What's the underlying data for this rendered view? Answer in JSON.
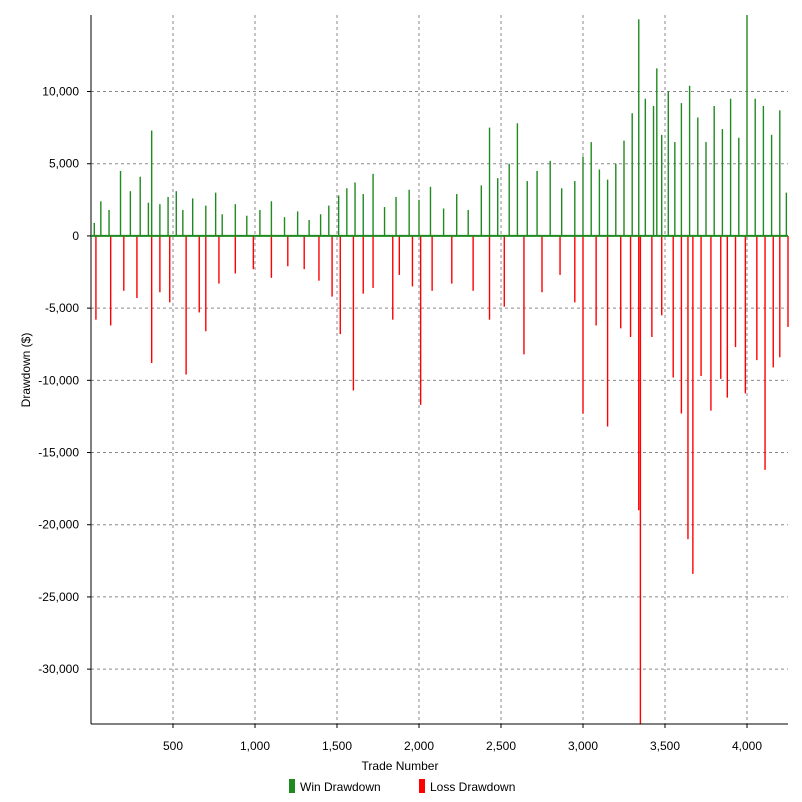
{
  "chart_data": {
    "type": "bar",
    "xlabel": "Trade Number",
    "ylabel": "Drawdown ($)",
    "xlim": [
      0,
      4250
    ],
    "ylim": [
      -33800,
      15300
    ],
    "x_ticks": [
      500,
      1000,
      1500,
      2000,
      2500,
      3000,
      3500,
      4000
    ],
    "x_tick_labels": [
      "500",
      "1,000",
      "1,500",
      "2,000",
      "2,500",
      "3,000",
      "3,500",
      "4,000"
    ],
    "y_ticks": [
      10000,
      5000,
      0,
      -5000,
      -10000,
      -15000,
      -20000,
      -25000,
      -30000
    ],
    "y_tick_labels": [
      "10,000",
      "5,000",
      "0",
      "-5,000",
      "-10,000",
      "-15,000",
      "-20,000",
      "-25,000",
      "-30,000"
    ],
    "grid": true,
    "legend": "bottom",
    "series": [
      {
        "name": "Win Drawdown",
        "color": "#1f8a1f",
        "points": [
          [
            20,
            900
          ],
          [
            60,
            2400
          ],
          [
            110,
            1800
          ],
          [
            180,
            4500
          ],
          [
            240,
            3100
          ],
          [
            300,
            4100
          ],
          [
            350,
            2300
          ],
          [
            370,
            7300
          ],
          [
            420,
            2200
          ],
          [
            470,
            2700
          ],
          [
            520,
            3100
          ],
          [
            560,
            1800
          ],
          [
            620,
            2600
          ],
          [
            700,
            2100
          ],
          [
            760,
            3000
          ],
          [
            800,
            1500
          ],
          [
            880,
            2200
          ],
          [
            950,
            1400
          ],
          [
            1030,
            1800
          ],
          [
            1100,
            2400
          ],
          [
            1180,
            1300
          ],
          [
            1260,
            1700
          ],
          [
            1330,
            1100
          ],
          [
            1400,
            1500
          ],
          [
            1450,
            2100
          ],
          [
            1510,
            2800
          ],
          [
            1560,
            3300
          ],
          [
            1610,
            3700
          ],
          [
            1660,
            2900
          ],
          [
            1720,
            4300
          ],
          [
            1790,
            2000
          ],
          [
            1860,
            2700
          ],
          [
            1940,
            3200
          ],
          [
            2000,
            2500
          ],
          [
            2070,
            3400
          ],
          [
            2150,
            1900
          ],
          [
            2230,
            2900
          ],
          [
            2300,
            1800
          ],
          [
            2380,
            3500
          ],
          [
            2430,
            7500
          ],
          [
            2480,
            4000
          ],
          [
            2550,
            5000
          ],
          [
            2600,
            7800
          ],
          [
            2660,
            3800
          ],
          [
            2720,
            4500
          ],
          [
            2800,
            5200
          ],
          [
            2870,
            3300
          ],
          [
            2950,
            3800
          ],
          [
            3000,
            5500
          ],
          [
            3050,
            6500
          ],
          [
            3100,
            4600
          ],
          [
            3150,
            3900
          ],
          [
            3200,
            5000
          ],
          [
            3250,
            6600
          ],
          [
            3300,
            8500
          ],
          [
            3340,
            15000
          ],
          [
            3380,
            9500
          ],
          [
            3430,
            9000
          ],
          [
            3450,
            11600
          ],
          [
            3480,
            7000
          ],
          [
            3520,
            10000
          ],
          [
            3560,
            6500
          ],
          [
            3600,
            9200
          ],
          [
            3650,
            10400
          ],
          [
            3700,
            8200
          ],
          [
            3750,
            6500
          ],
          [
            3800,
            9000
          ],
          [
            3850,
            7400
          ],
          [
            3900,
            9500
          ],
          [
            3950,
            6800
          ],
          [
            4000,
            15300
          ],
          [
            4050,
            9500
          ],
          [
            4100,
            9000
          ],
          [
            4150,
            7000
          ],
          [
            4200,
            8700
          ],
          [
            4240,
            3000
          ]
        ]
      },
      {
        "name": "Loss Drawdown",
        "color": "#ff0000",
        "points": [
          [
            30,
            -5800
          ],
          [
            120,
            -6200
          ],
          [
            200,
            -3800
          ],
          [
            280,
            -4300
          ],
          [
            370,
            -8800
          ],
          [
            420,
            -3900
          ],
          [
            480,
            -4600
          ],
          [
            580,
            -9600
          ],
          [
            660,
            -5300
          ],
          [
            700,
            -6600
          ],
          [
            780,
            -3300
          ],
          [
            880,
            -2600
          ],
          [
            990,
            -2300
          ],
          [
            1100,
            -2900
          ],
          [
            1200,
            -2100
          ],
          [
            1300,
            -2300
          ],
          [
            1390,
            -3100
          ],
          [
            1470,
            -4200
          ],
          [
            1520,
            -6800
          ],
          [
            1600,
            -10700
          ],
          [
            1660,
            -4000
          ],
          [
            1720,
            -3600
          ],
          [
            1840,
            -5800
          ],
          [
            1880,
            -2700
          ],
          [
            1960,
            -3500
          ],
          [
            2010,
            -11700
          ],
          [
            2080,
            -3800
          ],
          [
            2200,
            -3300
          ],
          [
            2330,
            -3800
          ],
          [
            2430,
            -5800
          ],
          [
            2520,
            -4900
          ],
          [
            2640,
            -8200
          ],
          [
            2750,
            -3900
          ],
          [
            2860,
            -2700
          ],
          [
            2950,
            -4600
          ],
          [
            3000,
            -12300
          ],
          [
            3080,
            -6200
          ],
          [
            3150,
            -13200
          ],
          [
            3230,
            -6400
          ],
          [
            3290,
            -7000
          ],
          [
            3340,
            -19000
          ],
          [
            3350,
            -33800
          ],
          [
            3420,
            -7000
          ],
          [
            3480,
            -5500
          ],
          [
            3550,
            -9800
          ],
          [
            3600,
            -12300
          ],
          [
            3640,
            -21000
          ],
          [
            3670,
            -23400
          ],
          [
            3720,
            -9700
          ],
          [
            3780,
            -12100
          ],
          [
            3840,
            -9900
          ],
          [
            3880,
            -11200
          ],
          [
            3930,
            -7700
          ],
          [
            3990,
            -10900
          ],
          [
            4060,
            -8600
          ],
          [
            4110,
            -16200
          ],
          [
            4160,
            -9100
          ],
          [
            4200,
            -8400
          ],
          [
            4250,
            -6300
          ]
        ]
      }
    ]
  }
}
